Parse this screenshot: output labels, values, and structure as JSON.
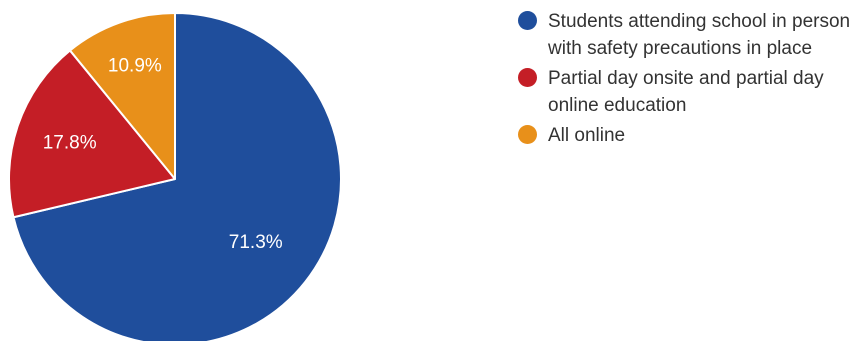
{
  "chart_data": {
    "type": "pie",
    "title": "",
    "start_angle_deg": 90,
    "direction": "clockwise",
    "legend_position": "right",
    "slices": [
      {
        "label": "Students attending school in person with safety precautions in place",
        "value": 71.3,
        "display": "71.3%",
        "color": "#1f4e9c"
      },
      {
        "label": "Partial day onsite and partial day online education",
        "value": 17.8,
        "display": "17.8%",
        "color": "#c41e26"
      },
      {
        "label": "All online",
        "value": 10.9,
        "display": "10.9%",
        "color": "#e8901a"
      }
    ]
  }
}
